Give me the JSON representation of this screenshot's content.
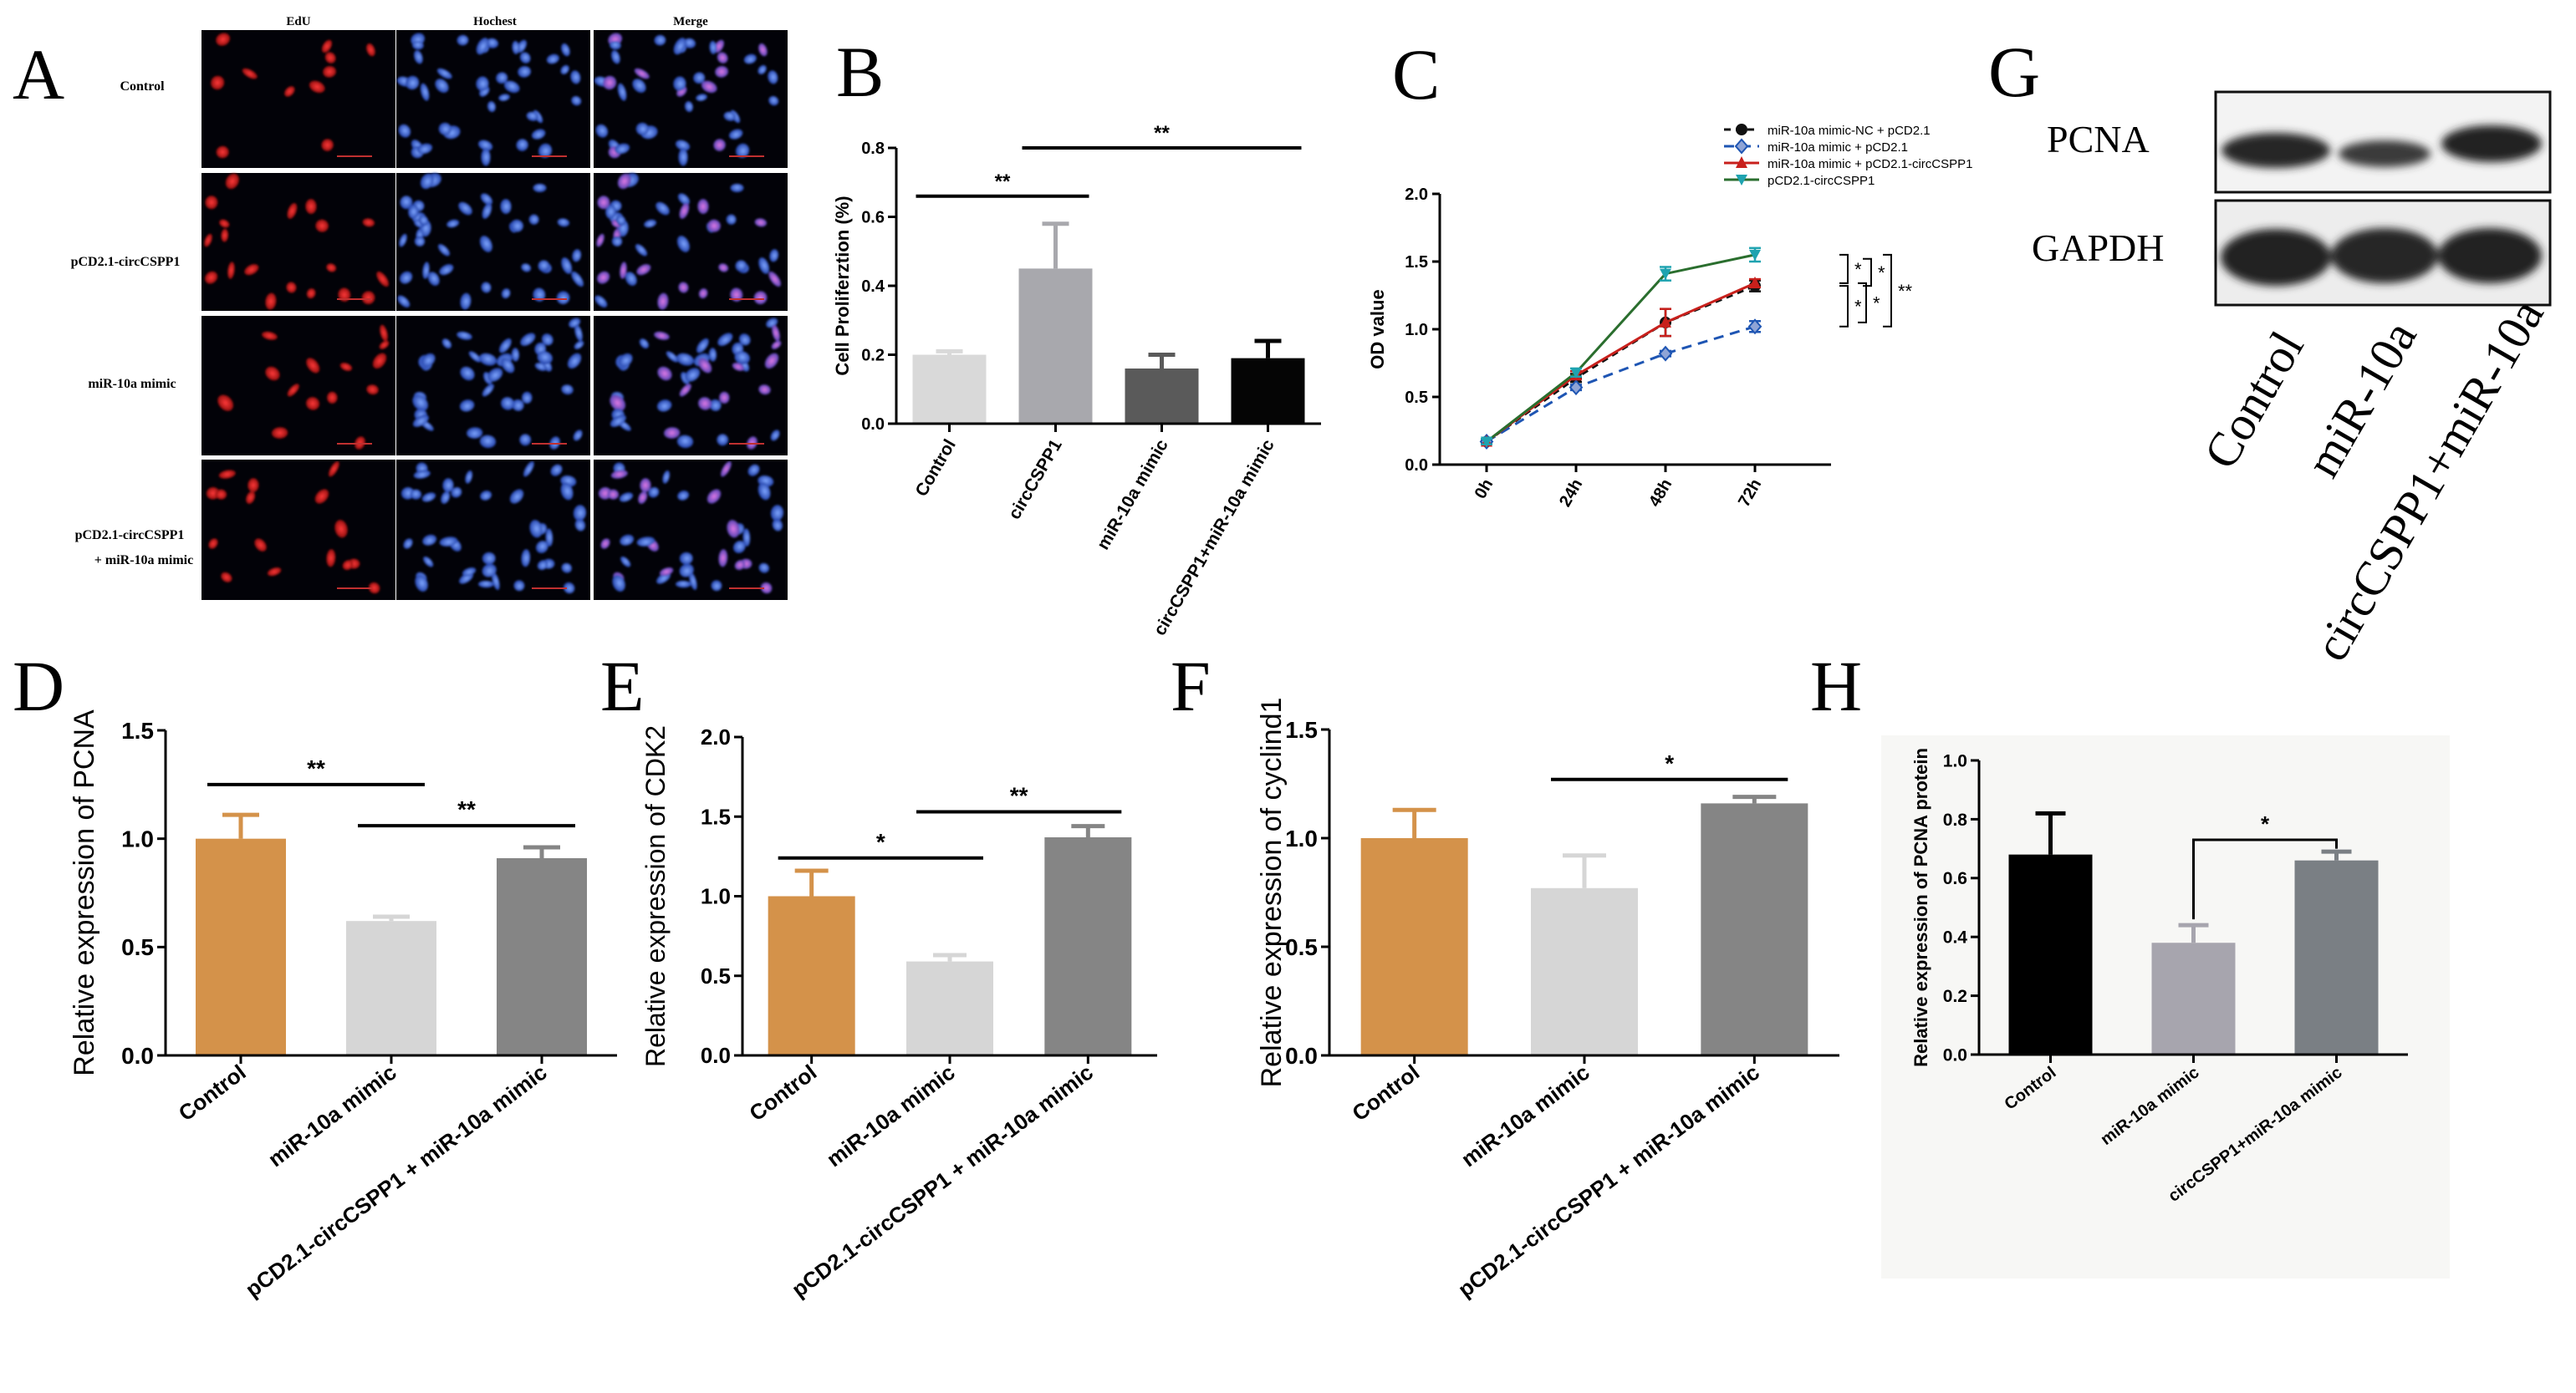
{
  "panels": {
    "A": "A",
    "B": "B",
    "C": "C",
    "D": "D",
    "E": "E",
    "F": "F",
    "G": "G",
    "H": "H"
  },
  "panel_a": {
    "col_headers": [
      "EdU",
      "Hochest",
      "Merge"
    ],
    "row_labels": [
      "Control",
      "pCD2.1-circCSPP1",
      "miR-10a mimic",
      "pCD2.1-circCSPP1",
      "+ miR-10a mimic"
    ]
  },
  "panel_g": {
    "band_labels": [
      "PCNA",
      "GAPDH"
    ],
    "lane_labels": [
      "Control",
      "miR-10a",
      "circCSPP1+miR-10a"
    ]
  },
  "colors": {
    "orange": "#D4924A",
    "lightgray": "#D6D6D6",
    "gray": "#858585",
    "b_light": "#D9D9D9",
    "b_mid": "#A8A8AD",
    "b_dark": "#5A5A5A",
    "b_black": "#050505",
    "h_black": "#000000",
    "h_lilac": "#A7A5AE",
    "h_slate": "#7A7F84",
    "c_black": "#111111",
    "c_blue": "#1E55B3",
    "c_red": "#C8201C",
    "c_green": "#2A6E2E"
  },
  "chart_data": [
    {
      "id": "B",
      "type": "bar",
      "title": "",
      "ylabel": "Cell Proliferztion (%)",
      "xlabel": "",
      "ylim": [
        0,
        0.8
      ],
      "yticks": [
        "0.0",
        "0.2",
        "0.4",
        "0.6",
        "0.8"
      ],
      "categories": [
        "Control",
        "circCSPP1",
        "miR-10a mimic",
        "circCSPP1+miR-10a mimic"
      ],
      "values": [
        0.2,
        0.45,
        0.16,
        0.19
      ],
      "errors": [
        0.01,
        0.13,
        0.04,
        0.05
      ],
      "colors": [
        "#D9D9D9",
        "#A8A8AD",
        "#5A5A5A",
        "#050505"
      ],
      "significance": [
        {
          "from": 0,
          "to": 1,
          "label": "**",
          "y": 0.66
        },
        {
          "from": 1,
          "to": 3,
          "label": "**",
          "y": 0.8
        }
      ]
    },
    {
      "id": "C",
      "type": "line",
      "ylabel": "OD value",
      "xlabel": "",
      "ylim": [
        0,
        2.0
      ],
      "yticks": [
        "0.0",
        "0.5",
        "1.0",
        "1.5",
        "2.0"
      ],
      "categories": [
        "0h",
        "24h",
        "48h",
        "72h"
      ],
      "series": [
        {
          "name": "miR-10a mimic-NC + pCD2.1",
          "values": [
            0.17,
            0.64,
            1.05,
            1.32
          ],
          "errors": [
            0.02,
            0.03,
            0.1,
            0.04
          ],
          "color": "#111111",
          "dash": "8,6",
          "marker": "circle"
        },
        {
          "name": "miR-10a mimic + pCD2.1",
          "values": [
            0.17,
            0.57,
            0.82,
            1.02
          ],
          "errors": [
            0.02,
            0.02,
            0.02,
            0.04
          ],
          "color": "#1E55B3",
          "dash": "12,8",
          "marker": "diamond"
        },
        {
          "name": "miR-10a mimic + pCD2.1-circCSPP1",
          "values": [
            0.17,
            0.66,
            1.05,
            1.34
          ],
          "errors": [
            0.02,
            0.03,
            0.1,
            0.03
          ],
          "color": "#C8201C",
          "dash": "",
          "marker": "triangle"
        },
        {
          "name": "pCD2.1-circCSPP1",
          "values": [
            0.17,
            0.68,
            1.41,
            1.55
          ],
          "errors": [
            0.02,
            0.03,
            0.05,
            0.05
          ],
          "color": "#2A6E2E",
          "dash": "",
          "marker": "tridown",
          "markerColor": "#1FA3B0"
        }
      ],
      "significance": [
        "*",
        "*",
        "*",
        "*",
        "**"
      ]
    },
    {
      "id": "D",
      "type": "bar",
      "ylabel": "Relative expression of PCNA",
      "xlabel": "",
      "ylim": [
        0,
        1.5
      ],
      "yticks": [
        "0.0",
        "0.5",
        "1.0",
        "1.5"
      ],
      "categories": [
        "Control",
        "miR-10a mimic",
        "pCD2.1-circCSPP1 + miR-10a mimic"
      ],
      "values": [
        1.0,
        0.62,
        0.91
      ],
      "errors": [
        0.11,
        0.02,
        0.05
      ],
      "colors": [
        "#D4924A",
        "#D6D6D6",
        "#858585"
      ],
      "significance": [
        {
          "from": 0,
          "to": 1,
          "label": "**",
          "y": 1.25
        },
        {
          "from": 1,
          "to": 2,
          "label": "**",
          "y": 1.06
        }
      ]
    },
    {
      "id": "E",
      "type": "bar",
      "ylabel": "Relative expression of CDK2",
      "xlabel": "",
      "ylim": [
        0,
        2.0
      ],
      "yticks": [
        "0.0",
        "0.5",
        "1.0",
        "1.5",
        "2.0"
      ],
      "categories": [
        "Control",
        "miR-10a mimic",
        "pCD2.1-circCSPP1 + miR-10a mimic"
      ],
      "values": [
        1.0,
        0.59,
        1.37
      ],
      "errors": [
        0.16,
        0.04,
        0.07
      ],
      "colors": [
        "#D4924A",
        "#D6D6D6",
        "#858585"
      ],
      "significance": [
        {
          "from": 0,
          "to": 1,
          "label": "*",
          "y": 1.24
        },
        {
          "from": 1,
          "to": 2,
          "label": "**",
          "y": 1.53
        }
      ]
    },
    {
      "id": "F",
      "type": "bar",
      "ylabel": "Relative expression of cyclind1",
      "xlabel": "",
      "ylim": [
        0,
        1.5
      ],
      "yticks": [
        "0.0",
        "0.5",
        "1.0",
        "1.5"
      ],
      "categories": [
        "Control",
        "miR-10a mimic",
        "pCD2.1-circCSPP1 + miR-10a mimic"
      ],
      "values": [
        1.0,
        0.77,
        1.16
      ],
      "errors": [
        0.13,
        0.15,
        0.03
      ],
      "colors": [
        "#D4924A",
        "#D6D6D6",
        "#858585"
      ],
      "significance": [
        {
          "from": 1,
          "to": 2,
          "label": "*",
          "y": 1.27
        }
      ]
    },
    {
      "id": "H",
      "type": "bar",
      "ylabel": "Relative expression of PCNA protein",
      "xlabel": "",
      "ylim": [
        0,
        1.0
      ],
      "yticks": [
        "0.0",
        "0.2",
        "0.4",
        "0.6",
        "0.8",
        "1.0"
      ],
      "categories": [
        "Control",
        "miR-10a mimic",
        "circCSPP1+miR-10a mimic"
      ],
      "values": [
        0.68,
        0.38,
        0.66
      ],
      "errors": [
        0.14,
        0.06,
        0.03
      ],
      "colors": [
        "#000000",
        "#A7A5AE",
        "#7A7F84"
      ],
      "significance": [
        {
          "from": 1,
          "to": 2,
          "label": "*",
          "y": 0.73
        }
      ]
    }
  ]
}
